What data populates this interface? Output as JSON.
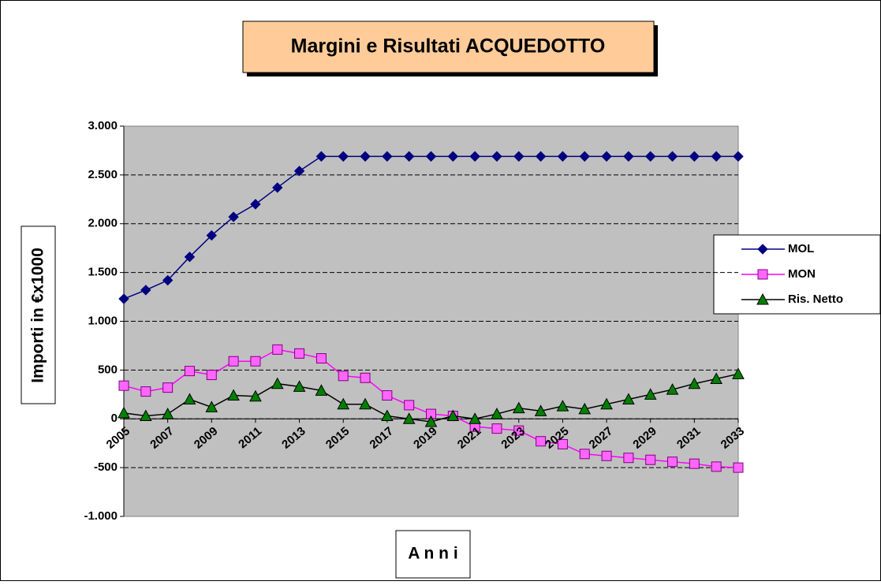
{
  "chart_data": {
    "type": "line",
    "title": "Margini e Risultati ACQUEDOTTO",
    "x_label": "A n n i",
    "y_label": "Importi in €x1000",
    "x": [
      2005,
      2006,
      2007,
      2008,
      2009,
      2010,
      2011,
      2012,
      2013,
      2014,
      2015,
      2016,
      2017,
      2018,
      2019,
      2020,
      2021,
      2022,
      2023,
      2024,
      2025,
      2026,
      2027,
      2028,
      2029,
      2030,
      2031,
      2032,
      2033
    ],
    "xlim": [
      2005,
      2033
    ],
    "xticks": [
      2005,
      2007,
      2009,
      2011,
      2013,
      2015,
      2017,
      2019,
      2021,
      2023,
      2025,
      2027,
      2029,
      2031,
      2033
    ],
    "ylim": [
      -1000,
      3000
    ],
    "yticks": [
      {
        "value": 3000,
        "label": "3.000"
      },
      {
        "value": 2500,
        "label": "2.500"
      },
      {
        "value": 2000,
        "label": "2.000"
      },
      {
        "value": 1500,
        "label": "1.500"
      },
      {
        "value": 1000,
        "label": "1.000"
      },
      500,
      0,
      -500,
      {
        "value": -1000,
        "label": "-1.000"
      }
    ],
    "grid": true,
    "legend": "right",
    "series": [
      {
        "name": "MOL",
        "color": "#000080",
        "marker": "diamond",
        "marker_color": "#000080",
        "values": [
          1230,
          1320,
          1420,
          1660,
          1880,
          2070,
          2200,
          2370,
          2540,
          2690,
          2690,
          2690,
          2690,
          2690,
          2690,
          2690,
          2690,
          2690,
          2690,
          2690,
          2690,
          2690,
          2690,
          2690,
          2690,
          2690,
          2690,
          2690,
          2690
        ]
      },
      {
        "name": "MON",
        "color": "#ff00ff",
        "marker": "square",
        "marker_color": "#ff66ff",
        "values": [
          340,
          280,
          320,
          490,
          450,
          590,
          590,
          710,
          670,
          620,
          440,
          420,
          240,
          140,
          50,
          30,
          -80,
          -100,
          -120,
          -230,
          -260,
          -360,
          -380,
          -400,
          -420,
          -440,
          -460,
          -490,
          -500
        ]
      },
      {
        "name": "Ris. Netto",
        "color": "#000000",
        "marker": "triangle",
        "marker_color": "#008000",
        "values": [
          60,
          30,
          50,
          200,
          120,
          240,
          230,
          360,
          330,
          290,
          150,
          150,
          30,
          0,
          -30,
          30,
          0,
          50,
          110,
          80,
          130,
          100,
          150,
          200,
          250,
          300,
          360,
          410,
          460
        ]
      }
    ]
  }
}
